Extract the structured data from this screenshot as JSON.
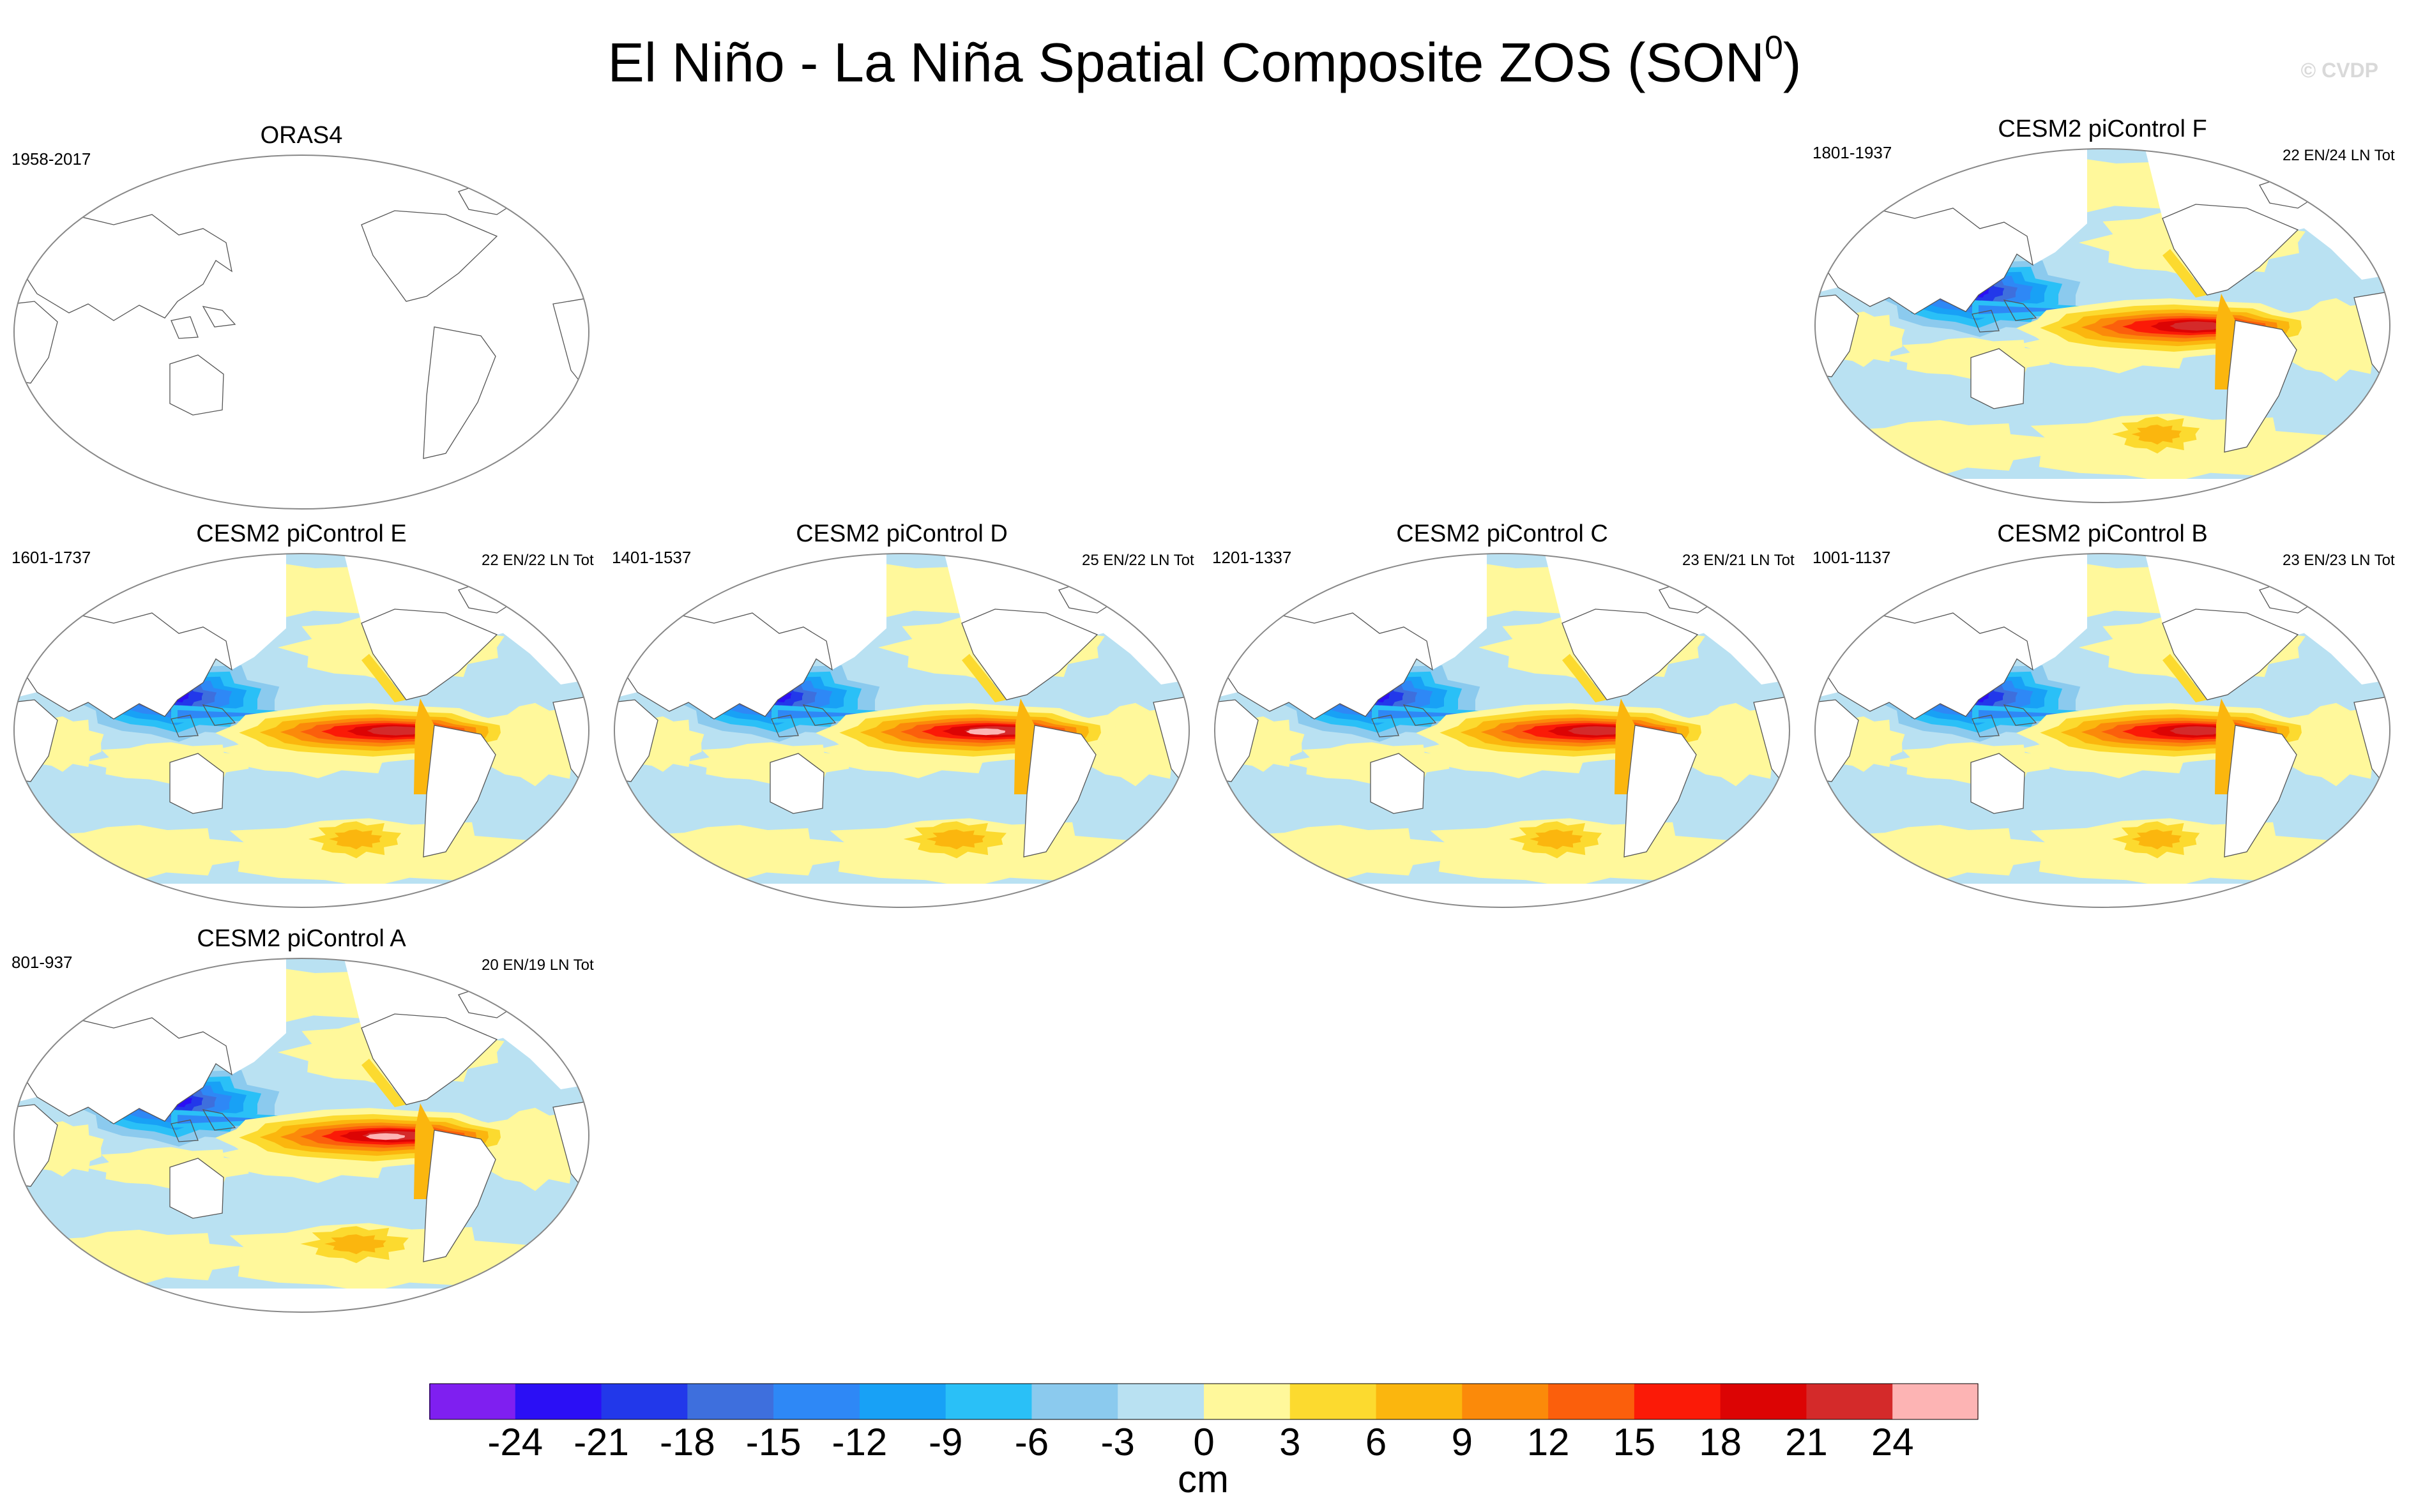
{
  "title": "El Niño - La Niña Spatial Composite ZOS (SON",
  "title_sup": "0",
  "title_close": ")",
  "watermark": "© CVDP",
  "panels": [
    {
      "id": "oras4",
      "title": "ORAS4",
      "years": "1958-2017",
      "counts": "",
      "filled": false
    },
    {
      "id": "f",
      "title": "CESM2 piControl F",
      "years": "1801-1937",
      "counts": "22 EN/24 LN Tot",
      "filled": true,
      "strength": 0.85
    },
    {
      "id": "e",
      "title": "CESM2 piControl E",
      "years": "1601-1737",
      "counts": "22 EN/22 LN Tot",
      "filled": true,
      "strength": 0.9
    },
    {
      "id": "d",
      "title": "CESM2 piControl D",
      "years": "1401-1537",
      "counts": "25 EN/22 LN Tot",
      "filled": true,
      "strength": 1.0
    },
    {
      "id": "c",
      "title": "CESM2 piControl C",
      "years": "1201-1337",
      "counts": "23 EN/21 LN Tot",
      "filled": true,
      "strength": 0.9
    },
    {
      "id": "b",
      "title": "CESM2 piControl B",
      "years": "1001-1137",
      "counts": "23 EN/23 LN Tot",
      "filled": true,
      "strength": 0.85
    },
    {
      "id": "a",
      "title": "CESM2 piControl A",
      "years": "801-937",
      "counts": "20 EN/19 LN Tot",
      "filled": true,
      "strength": 1.05
    }
  ],
  "colorbar": {
    "colors": [
      "#7f1ff0",
      "#2b0ff5",
      "#2238ea",
      "#3e6fdd",
      "#2e88f6",
      "#18a1f6",
      "#2ac0f7",
      "#8bcaee",
      "#b9e1f2",
      "#fff89b",
      "#fcda2f",
      "#fbb60e",
      "#fb8a0a",
      "#fb5f0c",
      "#fb1a07",
      "#dc0404",
      "#d42a2a",
      "#fdb4b4"
    ],
    "labels": [
      "-24",
      "-21",
      "-18",
      "-15",
      "-12",
      "-9",
      "-6",
      "-3",
      "0",
      "3",
      "6",
      "9",
      "12",
      "15",
      "18",
      "21",
      "24"
    ],
    "units": "cm"
  }
}
